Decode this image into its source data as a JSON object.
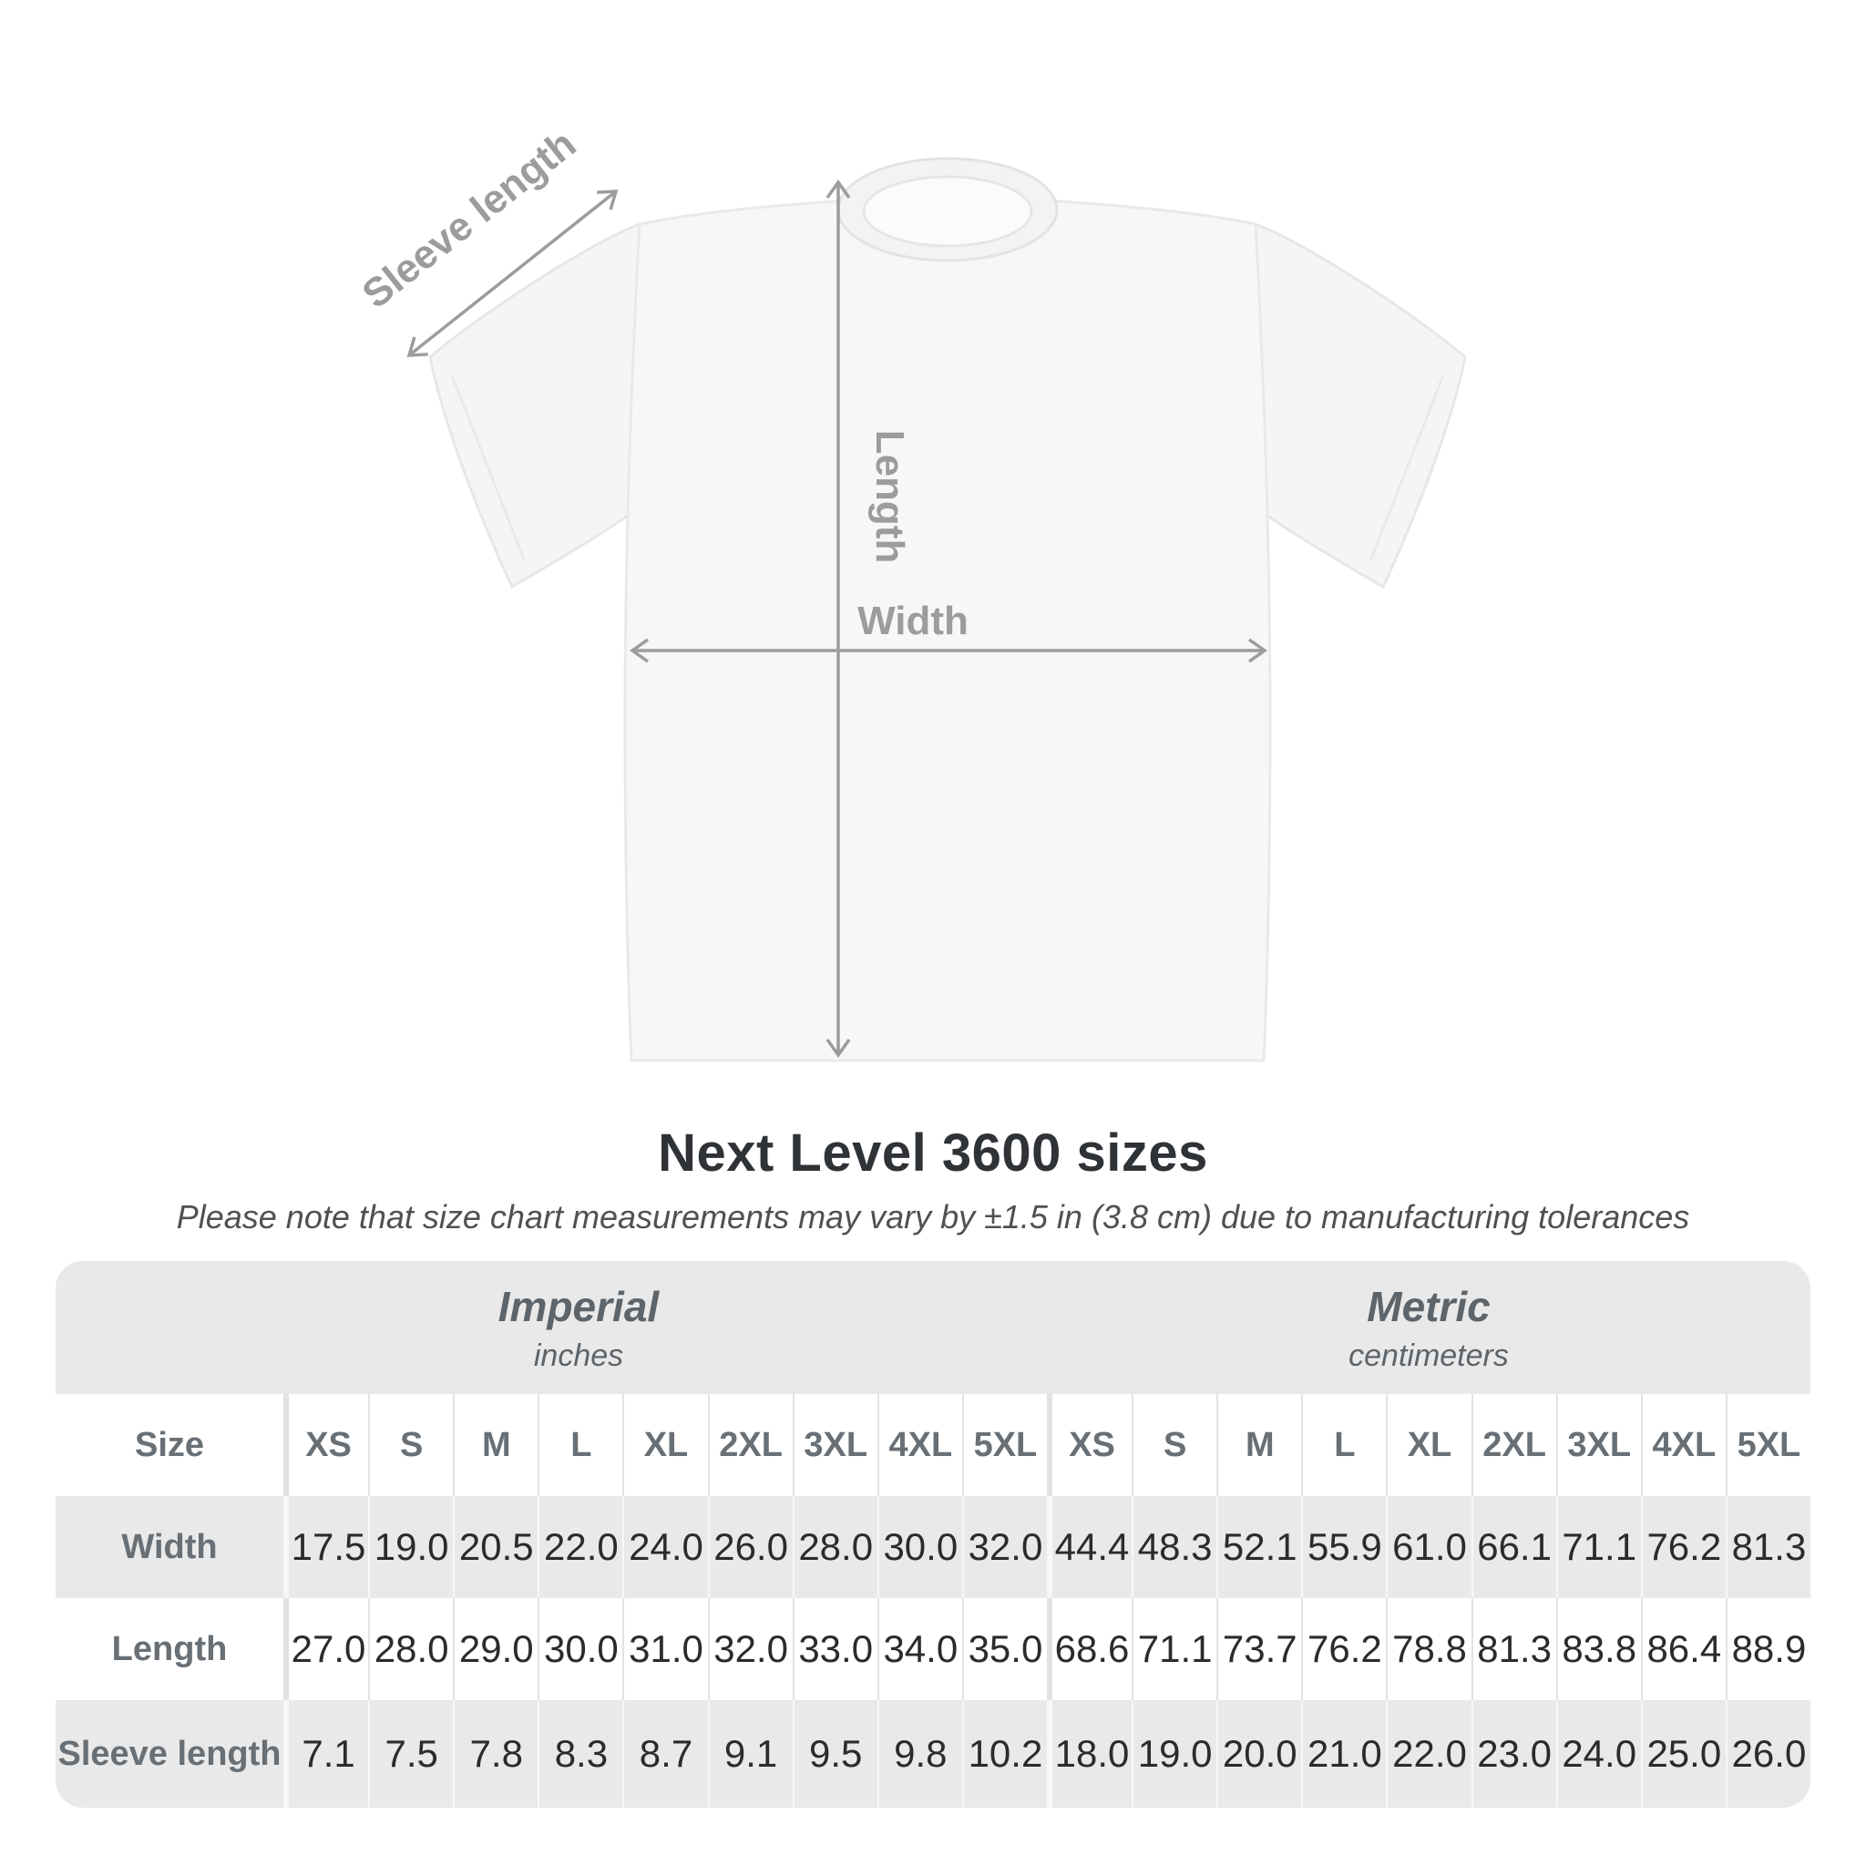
{
  "diagram": {
    "sleeve_label": "Sleeve length",
    "length_label": "Length",
    "width_label": "Width",
    "arrow_color": "#9c9c9c",
    "shirt_fill": "#f7f7f8",
    "shirt_outline": "#e7e7e8"
  },
  "heading": {
    "title": "Next Level 3600 sizes",
    "subtitle": "Please note that size chart measurements may vary by ±1.5 in (3.8 cm) due to manufacturing tolerances"
  },
  "size_table": {
    "corner_label": "Size",
    "groups": [
      {
        "label": "Imperial",
        "unit": "inches"
      },
      {
        "label": "Metric",
        "unit": "centimeters"
      }
    ],
    "sizes_imperial": [
      "XS",
      "S",
      "M",
      "L",
      "XL",
      "2XL",
      "3XL",
      "4XL",
      "5XL"
    ],
    "sizes_metric": [
      "XS",
      "S",
      "M",
      "L",
      "XL",
      "2XL",
      "3XL",
      "4XL",
      "5XL"
    ],
    "rows": [
      {
        "label": "Width",
        "imperial": [
          "17.5",
          "19.0",
          "20.5",
          "22.0",
          "24.0",
          "26.0",
          "28.0",
          "30.0",
          "32.0"
        ],
        "metric": [
          "44.4",
          "48.3",
          "52.1",
          "55.9",
          "61.0",
          "66.1",
          "71.1",
          "76.2",
          "81.3"
        ]
      },
      {
        "label": "Length",
        "imperial": [
          "27.0",
          "28.0",
          "29.0",
          "30.0",
          "31.0",
          "32.0",
          "33.0",
          "34.0",
          "35.0"
        ],
        "metric": [
          "68.6",
          "71.1",
          "73.7",
          "76.2",
          "78.8",
          "81.3",
          "83.8",
          "86.4",
          "88.9"
        ]
      },
      {
        "label": "Sleeve length",
        "imperial": [
          "7.1",
          "7.5",
          "7.8",
          "8.3",
          "8.7",
          "9.1",
          "9.5",
          "9.8",
          "10.2"
        ],
        "metric": [
          "18.0",
          "19.0",
          "20.0",
          "21.0",
          "22.0",
          "23.0",
          "24.0",
          "25.0",
          "26.0"
        ]
      }
    ],
    "colors": {
      "band_gray": "#e9e9e9",
      "label_text": "#686f75",
      "value_text": "#2b2b2b"
    }
  },
  "chart_data": {
    "type": "table",
    "title": "Next Level 3600 sizes",
    "note": "Measurements may vary by ±1.5 in (3.8 cm) due to manufacturing tolerances",
    "measures": [
      "Width",
      "Length",
      "Sleeve length"
    ],
    "sizes": [
      "XS",
      "S",
      "M",
      "L",
      "XL",
      "2XL",
      "3XL",
      "4XL",
      "5XL"
    ],
    "imperial_inches": {
      "Width": [
        17.5,
        19.0,
        20.5,
        22.0,
        24.0,
        26.0,
        28.0,
        30.0,
        32.0
      ],
      "Length": [
        27.0,
        28.0,
        29.0,
        30.0,
        31.0,
        32.0,
        33.0,
        34.0,
        35.0
      ],
      "Sleeve length": [
        7.1,
        7.5,
        7.8,
        8.3,
        8.7,
        9.1,
        9.5,
        9.8,
        10.2
      ]
    },
    "metric_centimeters": {
      "Width": [
        44.4,
        48.3,
        52.1,
        55.9,
        61.0,
        66.1,
        71.1,
        76.2,
        81.3
      ],
      "Length": [
        68.6,
        71.1,
        73.7,
        76.2,
        78.8,
        81.3,
        83.8,
        86.4,
        88.9
      ],
      "Sleeve length": [
        18.0,
        19.0,
        20.0,
        21.0,
        22.0,
        23.0,
        24.0,
        25.0,
        26.0
      ]
    }
  }
}
